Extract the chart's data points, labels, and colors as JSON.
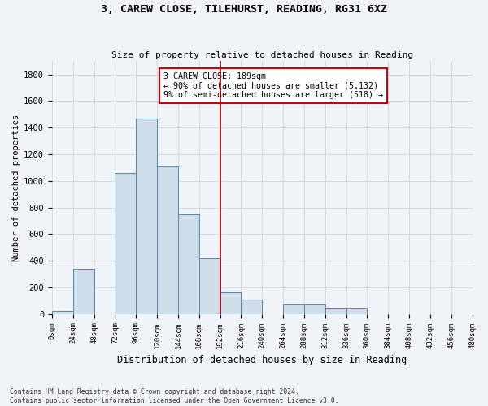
{
  "title": "3, CAREW CLOSE, TILEHURST, READING, RG31 6XZ",
  "subtitle": "Size of property relative to detached houses in Reading",
  "xlabel": "Distribution of detached houses by size in Reading",
  "ylabel": "Number of detached properties",
  "footer_line1": "Contains HM Land Registry data © Crown copyright and database right 2024.",
  "footer_line2": "Contains public sector information licensed under the Open Government Licence v3.0.",
  "annotation_title": "3 CAREW CLOSE: 189sqm",
  "annotation_line2": "← 90% of detached houses are smaller (5,132)",
  "annotation_line3": "9% of semi-detached houses are larger (518) →",
  "bin_edges": [
    0,
    24,
    48,
    72,
    96,
    120,
    144,
    168,
    192,
    216,
    240,
    264,
    288,
    312,
    336,
    360,
    384,
    408,
    432,
    456,
    480
  ],
  "bar_heights": [
    20,
    340,
    0,
    1060,
    1470,
    1110,
    750,
    420,
    165,
    110,
    0,
    70,
    70,
    45,
    45,
    0,
    0,
    0,
    0,
    0
  ],
  "bar_color": "#ccdce8",
  "bar_edge_color": "#5588aa",
  "vline_x": 192,
  "vline_color": "#aa0000",
  "annotation_box_color": "#cc0000",
  "ylim": [
    0,
    1900
  ],
  "yticks": [
    0,
    200,
    400,
    600,
    800,
    1000,
    1200,
    1400,
    1600,
    1800
  ],
  "background_color": "#f0f4f8",
  "grid_color": "#cccccc"
}
